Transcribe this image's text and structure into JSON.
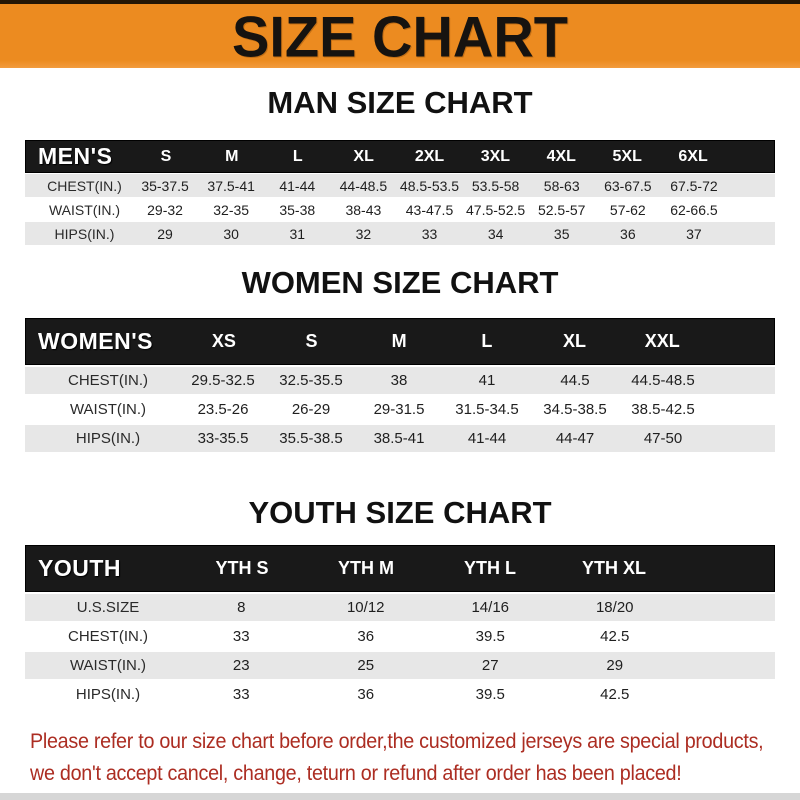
{
  "banner": {
    "title": "SIZE CHART",
    "bg_color": "#ec8b20",
    "text_color": "#161310"
  },
  "sections": [
    {
      "title": "MAN SIZE CHART",
      "table": {
        "header_label": "MEN'S",
        "columns": [
          "S",
          "M",
          "L",
          "XL",
          "2XL",
          "3XL",
          "4XL",
          "5XL",
          "6XL"
        ],
        "rows": [
          {
            "label": "CHEST(IN.)",
            "values": [
              "35-37.5",
              "37.5-41",
              "41-44",
              "44-48.5",
              "48.5-53.5",
              "53.5-58",
              "58-63",
              "63-67.5",
              "67.5-72"
            ]
          },
          {
            "label": "WAIST(IN.)",
            "values": [
              "29-32",
              "32-35",
              "35-38",
              "38-43",
              "43-47.5",
              "47.5-52.5",
              "52.5-57",
              "57-62",
              "62-66.5"
            ]
          },
          {
            "label": "HIPS(IN.)",
            "values": [
              "29",
              "30",
              "31",
              "32",
              "33",
              "34",
              "35",
              "36",
              "37"
            ]
          }
        ]
      }
    },
    {
      "title": "WOMEN SIZE CHART",
      "table": {
        "header_label": "WOMEN'S",
        "columns": [
          "XS",
          "S",
          "M",
          "L",
          "XL",
          "XXL"
        ],
        "rows": [
          {
            "label": "CHEST(IN.)",
            "values": [
              "29.5-32.5",
              "32.5-35.5",
              "38",
              "41",
              "44.5",
              "44.5-48.5"
            ]
          },
          {
            "label": "WAIST(IN.)",
            "values": [
              "23.5-26",
              "26-29",
              "29-31.5",
              "31.5-34.5",
              "34.5-38.5",
              "38.5-42.5"
            ]
          },
          {
            "label": "HIPS(IN.)",
            "values": [
              "33-35.5",
              "35.5-38.5",
              "38.5-41",
              "41-44",
              "44-47",
              "47-50"
            ]
          }
        ]
      }
    },
    {
      "title": "YOUTH SIZE CHART",
      "table": {
        "header_label": "YOUTH",
        "columns": [
          "YTH S",
          "YTH M",
          "YTH L",
          "YTH XL"
        ],
        "rows": [
          {
            "label": "U.S.SIZE",
            "values": [
              "8",
              "10/12",
              "14/16",
              "18/20"
            ]
          },
          {
            "label": "CHEST(IN.)",
            "values": [
              "33",
              "36",
              "39.5",
              "42.5"
            ]
          },
          {
            "label": "WAIST(IN.)",
            "values": [
              "23",
              "25",
              "27",
              "29"
            ]
          },
          {
            "label": "HIPS(IN.)",
            "values": [
              "33",
              "36",
              "39.5",
              "42.5"
            ]
          }
        ]
      }
    }
  ],
  "footer": {
    "line1": "Please refer to our size chart before order,the customized jerseys are special products,",
    "line2": "we don't accept cancel, change, teturn or refund after order has been placed!",
    "text_color": "#ac2d22"
  },
  "table_colors": {
    "header_bg": "#191919",
    "header_text": "#ffffff",
    "stripe_gray": "#e7e7e7",
    "stripe_white": "#ffffff"
  }
}
